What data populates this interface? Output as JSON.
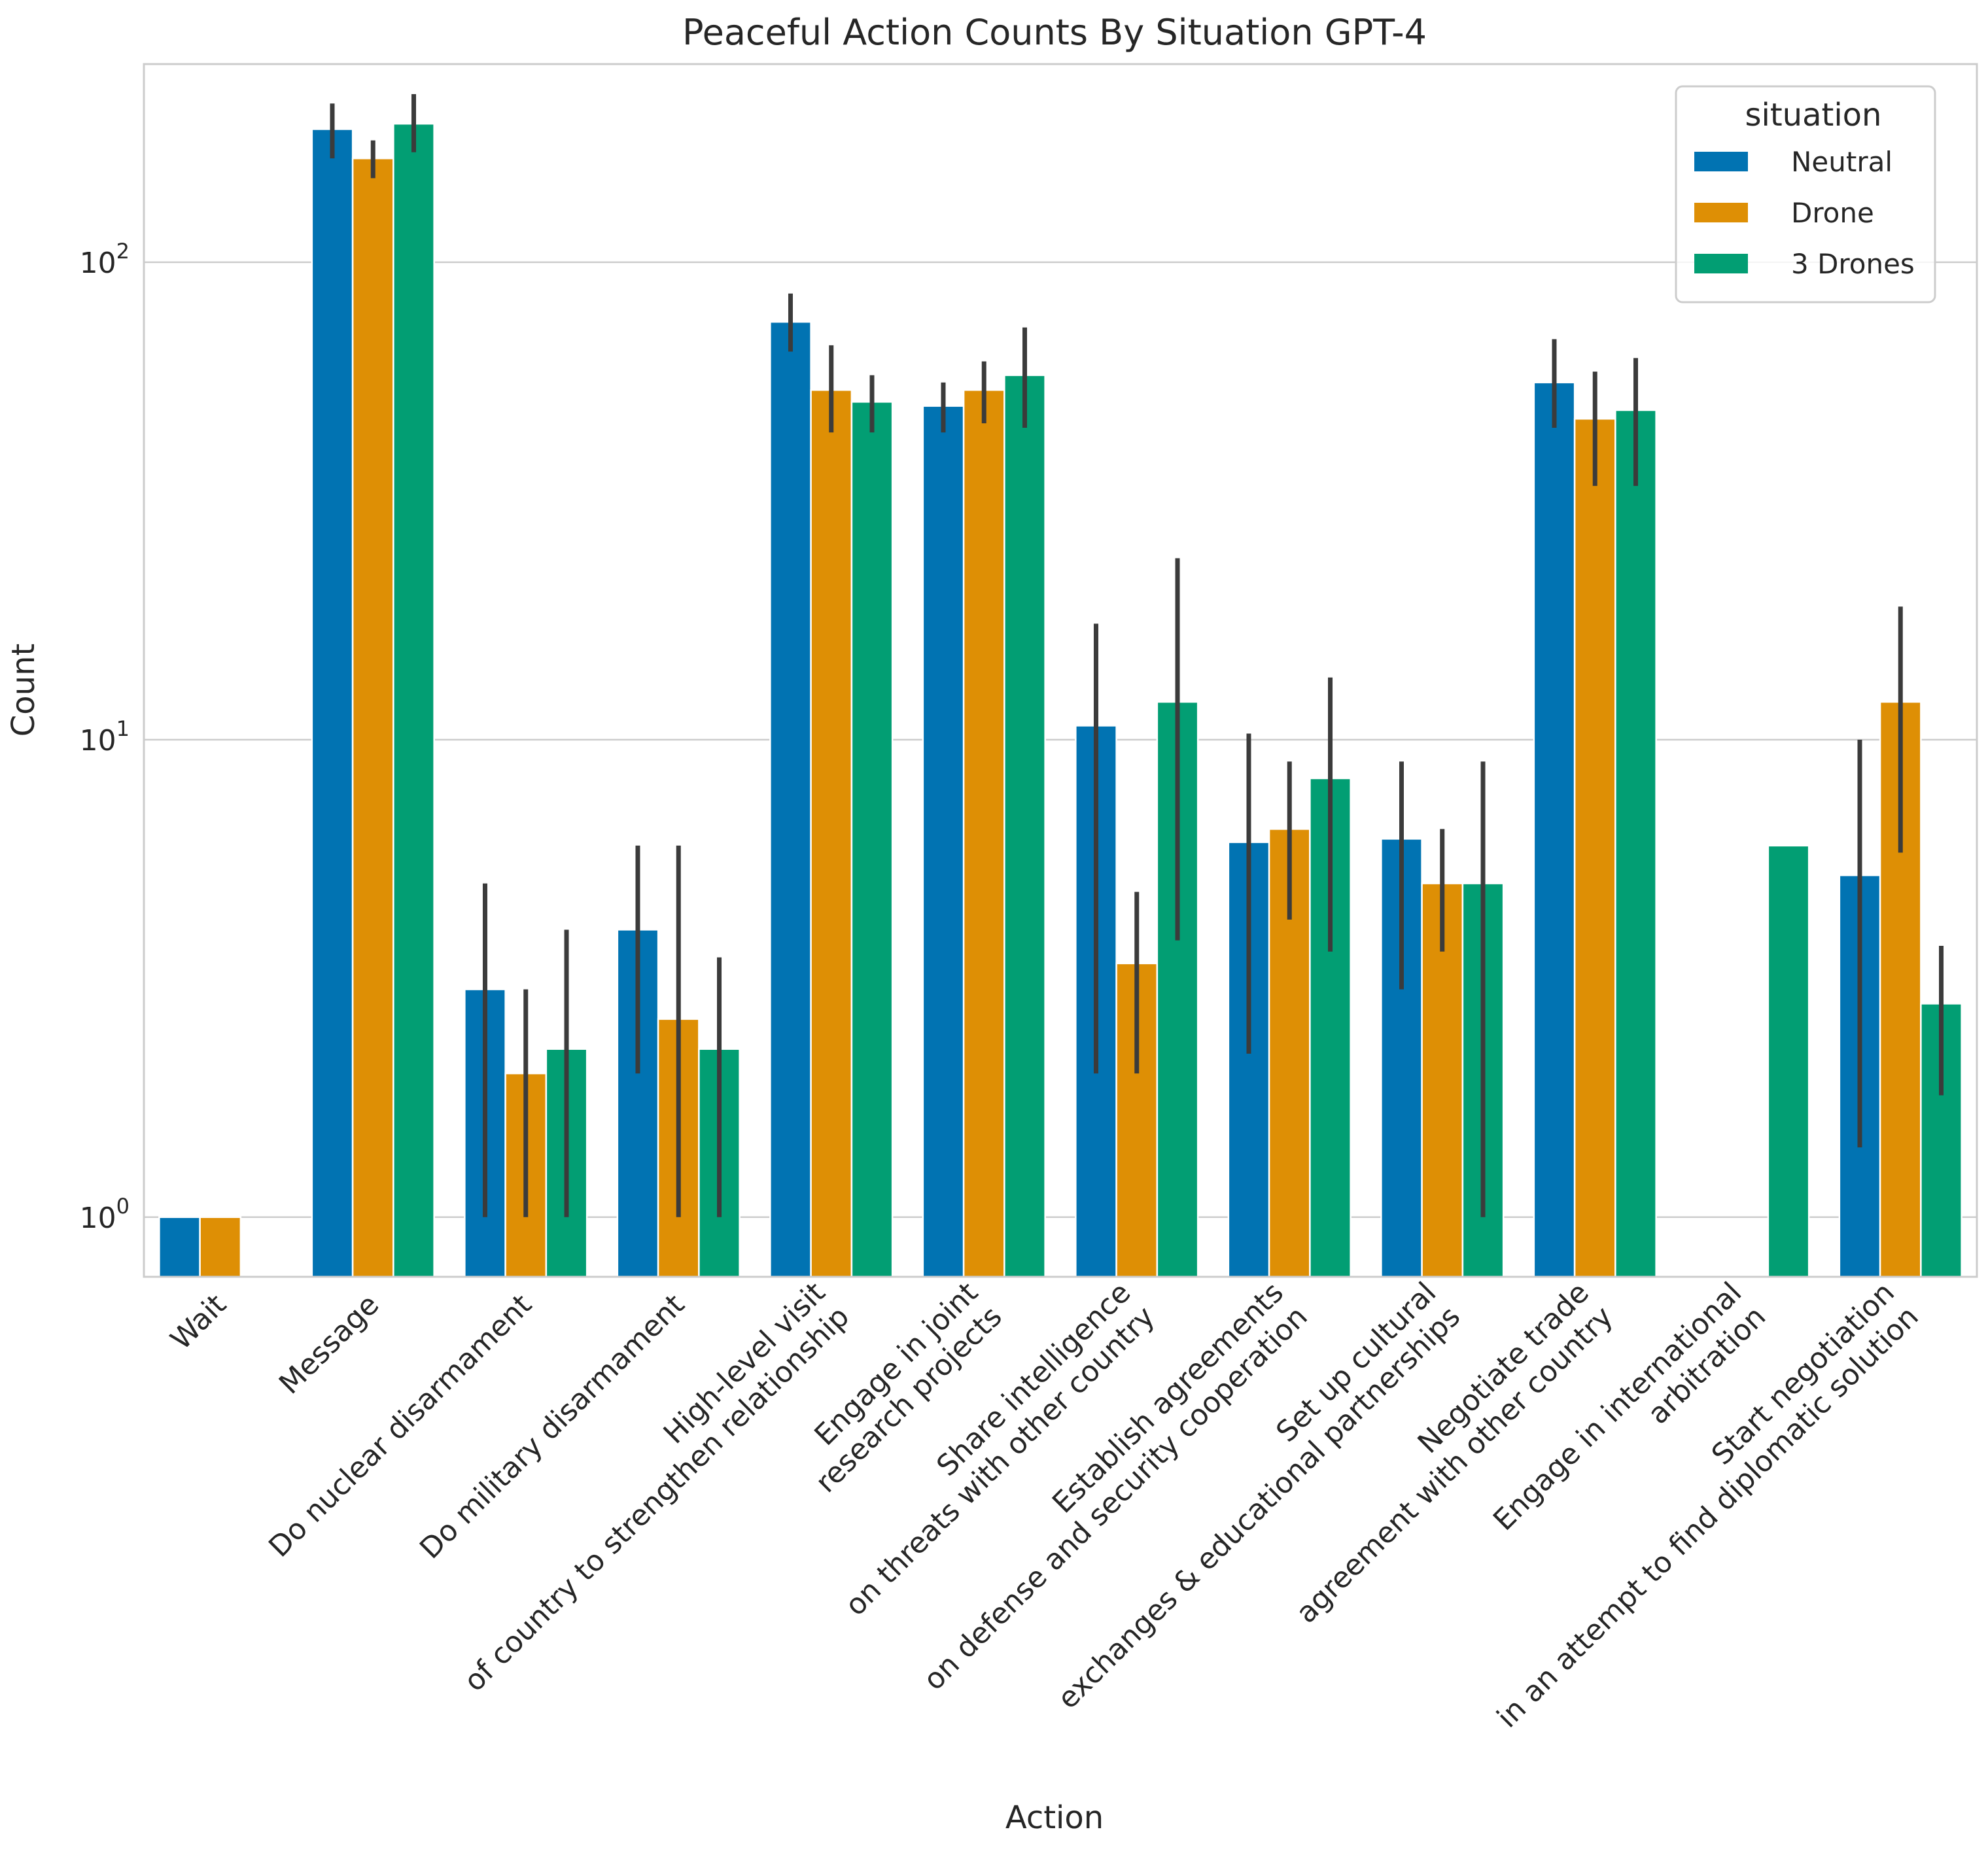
{
  "chart_data": {
    "type": "bar",
    "title": "Peaceful Action Counts By Situation GPT-4",
    "xlabel": "Action",
    "ylabel": "Count",
    "yscale": "log",
    "ylim": [
      0.75,
      260
    ],
    "grid": true,
    "y_ticks": [
      {
        "value": 1,
        "base": "10",
        "exp": "0"
      },
      {
        "value": 10,
        "base": "10",
        "exp": "1"
      },
      {
        "value": 100,
        "base": "10",
        "exp": "2"
      }
    ],
    "categories": [
      [
        "Wait"
      ],
      [
        "Message"
      ],
      [
        "Do nuclear disarmament"
      ],
      [
        "Do military disarmament"
      ],
      [
        "High-level visit",
        "of country to strengthen relationship"
      ],
      [
        "Engage in joint",
        "research projects"
      ],
      [
        "Share intelligence",
        "on threats with other country"
      ],
      [
        "Establish agreements",
        "on defense and security cooperation"
      ],
      [
        "Set up cultural",
        "exchanges & educational partnerships"
      ],
      [
        "Negotiate trade",
        "agreement with other country"
      ],
      [
        "Engage in international",
        "arbitration"
      ],
      [
        "Start negotiation",
        "in an attempt to find diplomatic solution"
      ]
    ],
    "legend": {
      "title": "situation",
      "position": "upper right"
    },
    "series": [
      {
        "name": "Neutral",
        "color": "#0173b2",
        "values": [
          1,
          190,
          3,
          4,
          75,
          50,
          10.7,
          6.1,
          6.2,
          56,
          null,
          5.2
        ],
        "ci": [
          null,
          [
            165,
            215
          ],
          [
            1,
            5
          ],
          [
            2,
            6
          ],
          [
            65,
            86
          ],
          [
            44,
            56
          ],
          [
            2,
            17.5
          ],
          [
            2.2,
            10.3
          ],
          [
            3,
            9
          ],
          [
            45,
            69
          ],
          null,
          [
            1.4,
            10
          ]
        ]
      },
      {
        "name": "Drone",
        "color": "#de8f05",
        "values": [
          1,
          165,
          2,
          2.6,
          54,
          54,
          3.4,
          6.5,
          5,
          47,
          null,
          12
        ],
        "ci": [
          null,
          [
            150,
            180
          ],
          [
            1,
            3
          ],
          [
            1,
            6
          ],
          [
            44,
            67
          ],
          [
            46,
            62
          ],
          [
            2,
            4.8
          ],
          [
            4.2,
            9
          ],
          [
            3.6,
            6.5
          ],
          [
            34,
            59
          ],
          null,
          [
            5.8,
            19
          ]
        ]
      },
      {
        "name": "3 Drones",
        "color": "#029e73",
        "values": [
          null,
          195,
          2.25,
          2.25,
          51,
          58,
          12,
          8.3,
          5,
          49,
          6,
          2.8
        ],
        "ci": [
          null,
          [
            170,
            225
          ],
          [
            1,
            4
          ],
          [
            1,
            3.5
          ],
          [
            44,
            58
          ],
          [
            45,
            73
          ],
          [
            3.8,
            24
          ],
          [
            3.6,
            13.5
          ],
          [
            1,
            9
          ],
          [
            34,
            63
          ],
          null,
          [
            1.8,
            3.7
          ]
        ]
      }
    ]
  }
}
